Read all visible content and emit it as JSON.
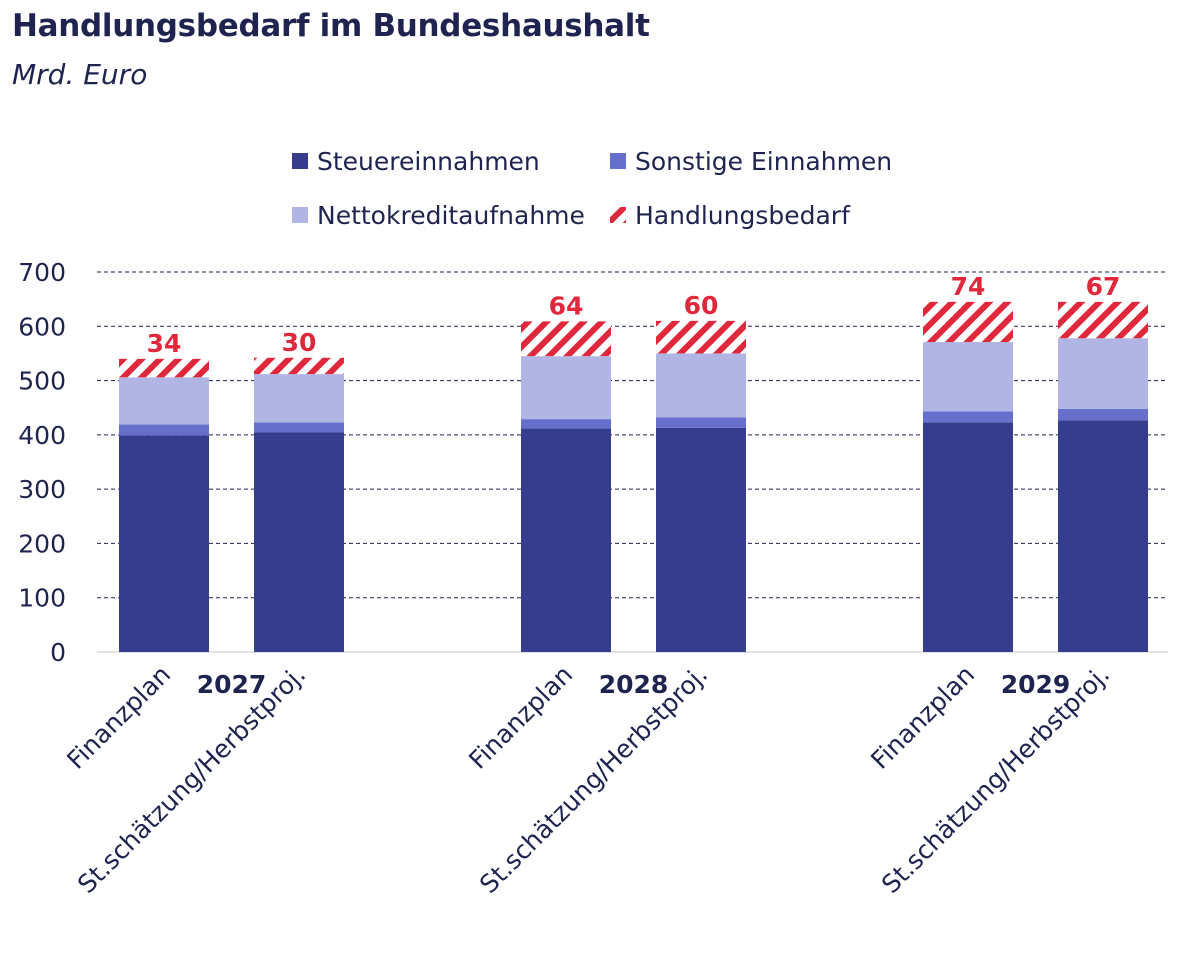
{
  "chart_data": {
    "type": "bar",
    "stacked": true,
    "title": "Handlungsbedarf im Bundeshaushalt",
    "subtitle": "Mrd. Euro",
    "ylim": [
      0,
      700
    ],
    "yticks": [
      0,
      100,
      200,
      300,
      400,
      500,
      600,
      700
    ],
    "ytick_labels": [
      "0",
      "100",
      "200",
      "300",
      "400",
      "500",
      "600",
      "700"
    ],
    "grid": true,
    "legend_position": "top-center",
    "groups": [
      {
        "label": "2027",
        "categories": [
          "Finanzplan",
          "St.schätzung/Herbstproj."
        ]
      },
      {
        "label": "2028",
        "categories": [
          "Finanzplan",
          "St.schätzung/Herbstproj."
        ]
      },
      {
        "label": "2029",
        "categories": [
          "Finanzplan",
          "St.schätzung/Herbstproj."
        ]
      }
    ],
    "series": [
      {
        "name": "Steuereinnahmen",
        "color": "#363d8e",
        "pattern": "solid",
        "values": [
          399,
          405,
          412,
          413,
          423,
          427
        ]
      },
      {
        "name": "Sonstige Einnahmen",
        "color": "#6670cc",
        "pattern": "solid",
        "values": [
          20,
          18,
          17,
          19,
          20,
          21
        ]
      },
      {
        "name": "Nettokreditaufnahme",
        "color": "#b1b5e3",
        "pattern": "solid",
        "values": [
          87,
          89,
          116,
          118,
          128,
          130
        ]
      },
      {
        "name": "Handlungsbedarf",
        "color": "#e0283d",
        "pattern": "hatch",
        "values": [
          34,
          30,
          64,
          60,
          74,
          67
        ]
      }
    ],
    "data_labels": [
      "34",
      "30",
      "64",
      "60",
      "74",
      "67"
    ]
  }
}
